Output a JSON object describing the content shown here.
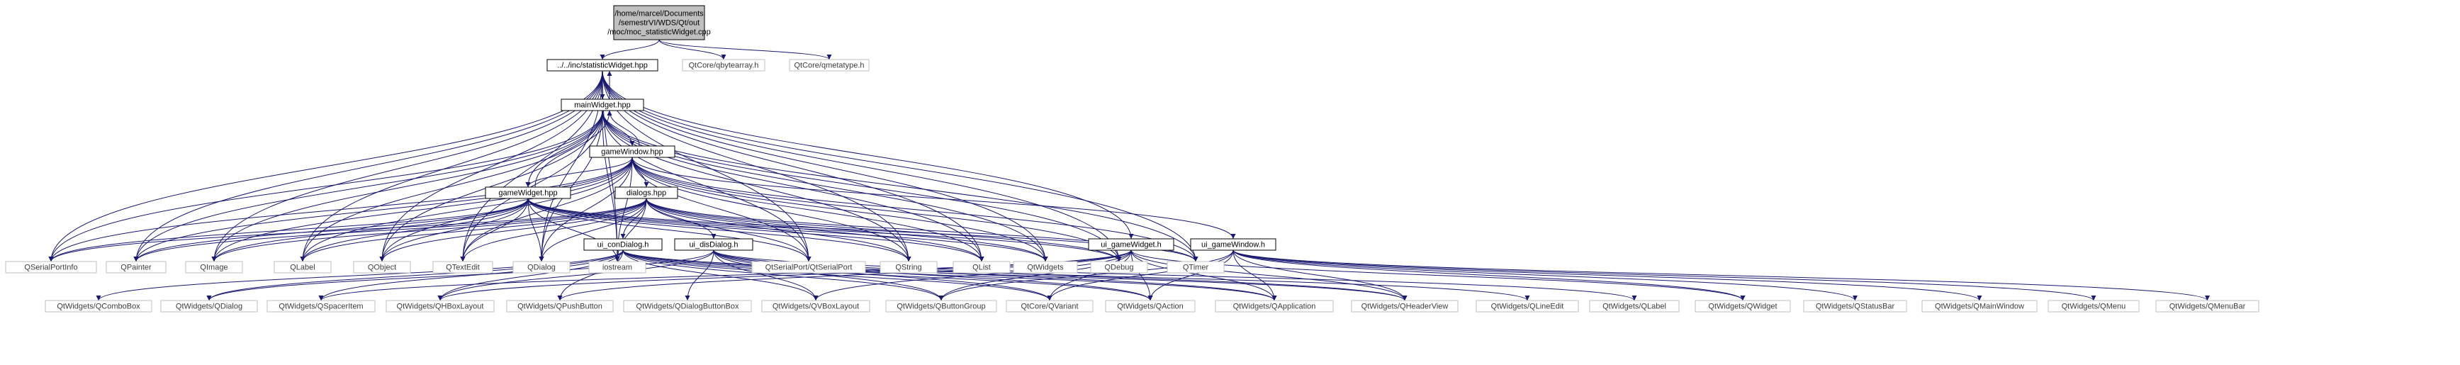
{
  "colors": {
    "edge": "#191970",
    "root_fill": "#bfbfbf",
    "sys_border": "#bfbfbf",
    "int_border": "#000000"
  },
  "nodes": [
    {
      "id": "root",
      "lines": [
        "/home/marcel/Documents",
        "/semestrVI/WDS/Qt/out",
        "/moc/moc_statisticWidget.cpp"
      ],
      "kind": "root"
    },
    {
      "id": "statw",
      "lines": [
        "../../inc/statisticWidget.hpp"
      ],
      "kind": "int"
    },
    {
      "id": "qbytearray",
      "lines": [
        "QtCore/qbytearray.h"
      ],
      "kind": "sys"
    },
    {
      "id": "qmetatype",
      "lines": [
        "QtCore/qmetatype.h"
      ],
      "kind": "sys"
    },
    {
      "id": "mainw",
      "lines": [
        "mainWidget.hpp"
      ],
      "kind": "int"
    },
    {
      "id": "gamewin",
      "lines": [
        "gameWindow.hpp"
      ],
      "kind": "int"
    },
    {
      "id": "dialogs",
      "lines": [
        "dialogs.hpp"
      ],
      "kind": "int"
    },
    {
      "id": "gamewid",
      "lines": [
        "gameWidget.hpp"
      ],
      "kind": "int"
    },
    {
      "id": "ui_con",
      "lines": [
        "ui_conDialog.h"
      ],
      "kind": "int"
    },
    {
      "id": "ui_dis",
      "lines": [
        "ui_disDialog.h"
      ],
      "kind": "int"
    },
    {
      "id": "ui_gwid",
      "lines": [
        "ui_gameWidget.h"
      ],
      "kind": "int"
    },
    {
      "id": "ui_gwin",
      "lines": [
        "ui_gameWindow.h"
      ],
      "kind": "int"
    },
    {
      "id": "qspi",
      "lines": [
        "QSerialPortInfo"
      ],
      "kind": "sys"
    },
    {
      "id": "qpainter",
      "lines": [
        "QPainter"
      ],
      "kind": "sys"
    },
    {
      "id": "qimage",
      "lines": [
        "QImage"
      ],
      "kind": "sys"
    },
    {
      "id": "qlabel",
      "lines": [
        "QLabel"
      ],
      "kind": "sys"
    },
    {
      "id": "qobject",
      "lines": [
        "QObject"
      ],
      "kind": "sys"
    },
    {
      "id": "qtextedit",
      "lines": [
        "QTextEdit"
      ],
      "kind": "sys"
    },
    {
      "id": "qdialog",
      "lines": [
        "QDialog"
      ],
      "kind": "sys"
    },
    {
      "id": "iostream",
      "lines": [
        "iostream"
      ],
      "kind": "sys"
    },
    {
      "id": "qserial",
      "lines": [
        "QtSerialPort/QtSerialPort"
      ],
      "kind": "sys"
    },
    {
      "id": "qstring",
      "lines": [
        "QString"
      ],
      "kind": "sys"
    },
    {
      "id": "qlist",
      "lines": [
        "QList"
      ],
      "kind": "sys"
    },
    {
      "id": "qwidgets",
      "lines": [
        "QtWidgets"
      ],
      "kind": "sys"
    },
    {
      "id": "qdebug",
      "lines": [
        "QDebug"
      ],
      "kind": "sys"
    },
    {
      "id": "qtimer",
      "lines": [
        "QTimer"
      ],
      "kind": "sys"
    },
    {
      "id": "w_combo",
      "lines": [
        "QtWidgets/QComboBox"
      ],
      "kind": "sys"
    },
    {
      "id": "w_qdialog",
      "lines": [
        "QtWidgets/QDialog"
      ],
      "kind": "sys"
    },
    {
      "id": "w_spacer",
      "lines": [
        "QtWidgets/QSpacerItem"
      ],
      "kind": "sys"
    },
    {
      "id": "w_hbox",
      "lines": [
        "QtWidgets/QHBoxLayout"
      ],
      "kind": "sys"
    },
    {
      "id": "w_push",
      "lines": [
        "QtWidgets/QPushButton"
      ],
      "kind": "sys"
    },
    {
      "id": "w_dbb",
      "lines": [
        "QtWidgets/QDialogButtonBox"
      ],
      "kind": "sys"
    },
    {
      "id": "w_vbox",
      "lines": [
        "QtWidgets/QVBoxLayout"
      ],
      "kind": "sys"
    },
    {
      "id": "w_bgroup",
      "lines": [
        "QtWidgets/QButtonGroup"
      ],
      "kind": "sys"
    },
    {
      "id": "c_variant",
      "lines": [
        "QtCore/QVariant"
      ],
      "kind": "sys"
    },
    {
      "id": "w_action",
      "lines": [
        "QtWidgets/QAction"
      ],
      "kind": "sys"
    },
    {
      "id": "w_app",
      "lines": [
        "QtWidgets/QApplication"
      ],
      "kind": "sys"
    },
    {
      "id": "w_header",
      "lines": [
        "QtWidgets/QHeaderView"
      ],
      "kind": "sys"
    },
    {
      "id": "w_lineedit",
      "lines": [
        "QtWidgets/QLineEdit"
      ],
      "kind": "sys"
    },
    {
      "id": "w_label",
      "lines": [
        "QtWidgets/QLabel"
      ],
      "kind": "sys"
    },
    {
      "id": "w_widget",
      "lines": [
        "QtWidgets/QWidget"
      ],
      "kind": "sys"
    },
    {
      "id": "w_status",
      "lines": [
        "QtWidgets/QStatusBar"
      ],
      "kind": "sys"
    },
    {
      "id": "w_mainwin",
      "lines": [
        "QtWidgets/QMainWindow"
      ],
      "kind": "sys"
    },
    {
      "id": "w_menu",
      "lines": [
        "QtWidgets/QMenu"
      ],
      "kind": "sys"
    },
    {
      "id": "w_menubar",
      "lines": [
        "QtWidgets/QMenuBar"
      ],
      "kind": "sys"
    }
  ],
  "edges": [
    [
      "root",
      "statw"
    ],
    [
      "root",
      "qbytearray"
    ],
    [
      "root",
      "qmetatype"
    ],
    [
      "statw",
      "mainw"
    ],
    [
      "statw",
      "qspi"
    ],
    [
      "statw",
      "qpainter"
    ],
    [
      "statw",
      "qimage"
    ],
    [
      "statw",
      "qlabel"
    ],
    [
      "statw",
      "qobject"
    ],
    [
      "statw",
      "qtextedit"
    ],
    [
      "statw",
      "qdialog"
    ],
    [
      "statw",
      "iostream"
    ],
    [
      "statw",
      "qserial"
    ],
    [
      "statw",
      "qstring"
    ],
    [
      "statw",
      "qlist"
    ],
    [
      "statw",
      "qwidgets"
    ],
    [
      "statw",
      "qdebug"
    ],
    [
      "statw",
      "qtimer"
    ],
    [
      "statw",
      "ui_gwid"
    ],
    [
      "mainw",
      "statw"
    ],
    [
      "mainw",
      "gamewin"
    ],
    [
      "mainw",
      "gamewid"
    ],
    [
      "mainw",
      "qspi"
    ],
    [
      "mainw",
      "qpainter"
    ],
    [
      "mainw",
      "qimage"
    ],
    [
      "mainw",
      "qlabel"
    ],
    [
      "mainw",
      "qobject"
    ],
    [
      "mainw",
      "qtextedit"
    ],
    [
      "mainw",
      "qdialog"
    ],
    [
      "mainw",
      "iostream"
    ],
    [
      "mainw",
      "qserial"
    ],
    [
      "mainw",
      "qstring"
    ],
    [
      "mainw",
      "qlist"
    ],
    [
      "mainw",
      "qwidgets"
    ],
    [
      "mainw",
      "qdebug"
    ],
    [
      "mainw",
      "qtimer"
    ],
    [
      "gamewin",
      "mainw"
    ],
    [
      "gamewin",
      "dialogs"
    ],
    [
      "gamewin",
      "gamewid"
    ],
    [
      "gamewin",
      "ui_gwin"
    ],
    [
      "gamewin",
      "qspi"
    ],
    [
      "gamewin",
      "qpainter"
    ],
    [
      "gamewin",
      "qimage"
    ],
    [
      "gamewin",
      "qlabel"
    ],
    [
      "gamewin",
      "qobject"
    ],
    [
      "gamewin",
      "qtextedit"
    ],
    [
      "gamewin",
      "qdialog"
    ],
    [
      "gamewin",
      "iostream"
    ],
    [
      "gamewin",
      "qserial"
    ],
    [
      "gamewin",
      "qstring"
    ],
    [
      "gamewin",
      "qlist"
    ],
    [
      "gamewin",
      "qwidgets"
    ],
    [
      "gamewin",
      "qdebug"
    ],
    [
      "gamewin",
      "qtimer"
    ],
    [
      "gamewid",
      "mainw"
    ],
    [
      "gamewid",
      "qspi"
    ],
    [
      "gamewid",
      "qpainter"
    ],
    [
      "gamewid",
      "qimage"
    ],
    [
      "gamewid",
      "qlabel"
    ],
    [
      "gamewid",
      "qobject"
    ],
    [
      "gamewid",
      "qtextedit"
    ],
    [
      "gamewid",
      "qdialog"
    ],
    [
      "gamewid",
      "iostream"
    ],
    [
      "gamewid",
      "qserial"
    ],
    [
      "gamewid",
      "qstring"
    ],
    [
      "gamewid",
      "qlist"
    ],
    [
      "gamewid",
      "qwidgets"
    ],
    [
      "gamewid",
      "qdebug"
    ],
    [
      "gamewid",
      "qtimer"
    ],
    [
      "dialogs",
      "ui_con"
    ],
    [
      "dialogs",
      "ui_dis"
    ],
    [
      "dialogs",
      "qspi"
    ],
    [
      "dialogs",
      "qpainter"
    ],
    [
      "dialogs",
      "qimage"
    ],
    [
      "dialogs",
      "qlabel"
    ],
    [
      "dialogs",
      "qobject"
    ],
    [
      "dialogs",
      "qtextedit"
    ],
    [
      "dialogs",
      "qdialog"
    ],
    [
      "dialogs",
      "iostream"
    ],
    [
      "dialogs",
      "qserial"
    ],
    [
      "dialogs",
      "qstring"
    ],
    [
      "dialogs",
      "qlist"
    ],
    [
      "dialogs",
      "qwidgets"
    ],
    [
      "dialogs",
      "qdebug"
    ],
    [
      "dialogs",
      "qtimer"
    ],
    [
      "ui_con",
      "w_combo"
    ],
    [
      "ui_con",
      "w_qdialog"
    ],
    [
      "ui_con",
      "w_spacer"
    ],
    [
      "ui_con",
      "w_hbox"
    ],
    [
      "ui_con",
      "w_push"
    ],
    [
      "ui_con",
      "w_vbox"
    ],
    [
      "ui_con",
      "w_bgroup"
    ],
    [
      "ui_con",
      "c_variant"
    ],
    [
      "ui_con",
      "w_action"
    ],
    [
      "ui_con",
      "w_app"
    ],
    [
      "ui_con",
      "w_header"
    ],
    [
      "ui_con",
      "w_lineedit"
    ],
    [
      "ui_dis",
      "w_qdialog"
    ],
    [
      "ui_dis",
      "w_hbox"
    ],
    [
      "ui_dis",
      "w_dbb"
    ],
    [
      "ui_dis",
      "w_vbox"
    ],
    [
      "ui_dis",
      "w_bgroup"
    ],
    [
      "ui_dis",
      "c_variant"
    ],
    [
      "ui_dis",
      "w_action"
    ],
    [
      "ui_dis",
      "w_app"
    ],
    [
      "ui_dis",
      "w_header"
    ],
    [
      "ui_dis",
      "w_label"
    ],
    [
      "ui_gwid",
      "w_spacer"
    ],
    [
      "ui_gwid",
      "w_hbox"
    ],
    [
      "ui_gwid",
      "w_push"
    ],
    [
      "ui_gwid",
      "w_vbox"
    ],
    [
      "ui_gwid",
      "w_bgroup"
    ],
    [
      "ui_gwid",
      "c_variant"
    ],
    [
      "ui_gwid",
      "w_action"
    ],
    [
      "ui_gwid",
      "w_app"
    ],
    [
      "ui_gwid",
      "w_header"
    ],
    [
      "ui_gwid",
      "w_widget"
    ],
    [
      "ui_gwin",
      "w_bgroup"
    ],
    [
      "ui_gwin",
      "c_variant"
    ],
    [
      "ui_gwin",
      "w_action"
    ],
    [
      "ui_gwin",
      "w_app"
    ],
    [
      "ui_gwin",
      "w_header"
    ],
    [
      "ui_gwin",
      "w_widget"
    ],
    [
      "ui_gwin",
      "w_status"
    ],
    [
      "ui_gwin",
      "w_mainwin"
    ],
    [
      "ui_gwin",
      "w_menu"
    ],
    [
      "ui_gwin",
      "w_menubar"
    ]
  ]
}
